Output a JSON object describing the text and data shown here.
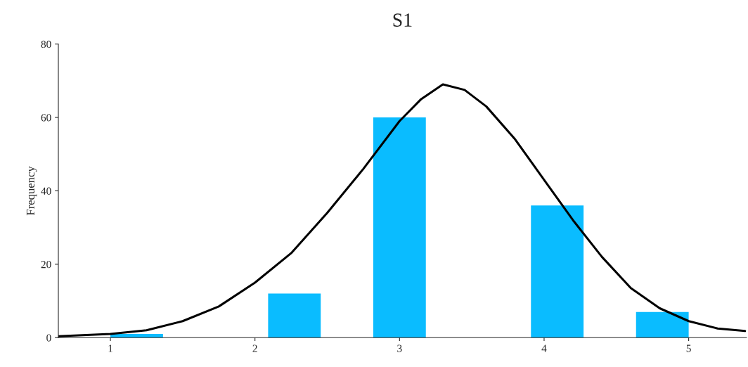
{
  "chart_data": {
    "type": "histogram",
    "title": "S1",
    "ylabel": "Frequency",
    "bins": [
      1,
      1.364,
      1.727,
      2.091,
      2.455,
      2.818,
      3.182,
      3.545,
      3.909,
      4.273,
      4.636,
      5
    ],
    "values": [
      1,
      0,
      0,
      12,
      0,
      60,
      0,
      0,
      36,
      0,
      7
    ],
    "color": "#0abcff",
    "series": [
      {
        "type": "line",
        "color": "#000000",
        "x": [
          0.64,
          1.0,
          1.25,
          1.5,
          1.75,
          2.0,
          2.25,
          2.5,
          2.75,
          3.0,
          3.15,
          3.3,
          3.45,
          3.6,
          3.8,
          4.0,
          4.2,
          4.4,
          4.6,
          4.8,
          5.0,
          5.2,
          5.39
        ],
        "values": [
          0.4,
          1,
          2,
          4.5,
          8.5,
          15,
          23,
          34,
          46,
          59,
          65,
          69,
          67.5,
          63,
          54,
          43,
          32,
          22,
          13.5,
          8,
          4.5,
          2.5,
          1.8
        ]
      }
    ],
    "xlim": [
      0.64,
      5.4
    ],
    "ylim": [
      0,
      80
    ],
    "xticks": [
      1,
      2,
      3,
      4,
      5
    ],
    "yticks": [
      0,
      20,
      40,
      60,
      80
    ],
    "grid": false,
    "legend": false
  }
}
